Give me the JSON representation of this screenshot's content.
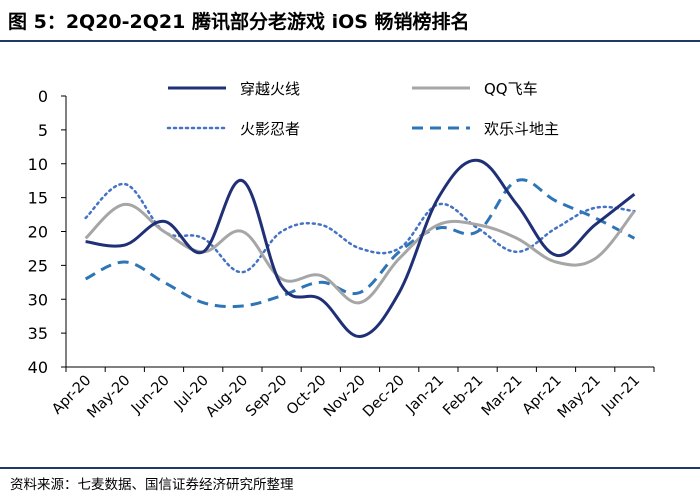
{
  "figure": {
    "title": "图 5：2Q20-2Q21 腾讯部分老游戏 iOS 畅销榜排名",
    "source": "资料来源：七麦数据、国信证券经济研究所整理"
  },
  "chart_data": {
    "type": "line",
    "title": "2Q20-2Q21 腾讯部分老游戏 iOS 畅销榜排名",
    "xlabel": "",
    "ylabel": "",
    "ylim": [
      0,
      40
    ],
    "y_inverted": true,
    "yticks": [
      0,
      5,
      10,
      15,
      20,
      25,
      30,
      35,
      40
    ],
    "categories": [
      "Apr-20",
      "May-20",
      "Jun-20",
      "Jul-20",
      "Aug-20",
      "Sep-20",
      "Oct-20",
      "Nov-20",
      "Dec-20",
      "Jan-21",
      "Feb-21",
      "Mar-21",
      "Apr-21",
      "May-21",
      "Jun-21"
    ],
    "grid": false,
    "legend_position": "top",
    "series": [
      {
        "name": "穿越火线",
        "style": "solid",
        "color": "#1f3076",
        "values": [
          21.5,
          22,
          18.5,
          23,
          12.5,
          28,
          30,
          35.5,
          29,
          15,
          9.5,
          16,
          23.5,
          19,
          14.5
        ]
      },
      {
        "name": "QQ飞车",
        "style": "solid",
        "color": "#a6a6a6",
        "values": [
          21,
          16,
          20,
          23,
          20,
          27,
          26.5,
          30.5,
          24,
          19,
          19,
          21,
          24.5,
          24,
          17
        ]
      },
      {
        "name": "火影忍者",
        "style": "dotted",
        "color": "#4472c4",
        "values": [
          18,
          13,
          20,
          21,
          26,
          20,
          19,
          22.5,
          22.5,
          16,
          19.5,
          23,
          19.5,
          16.5,
          17
        ]
      },
      {
        "name": "欢乐斗地主",
        "style": "dashed",
        "color": "#2e75b6",
        "values": [
          27,
          24.5,
          27.5,
          30.5,
          31,
          29.5,
          27.5,
          29,
          23,
          19.5,
          20,
          12.5,
          15.5,
          18,
          21
        ]
      }
    ]
  }
}
